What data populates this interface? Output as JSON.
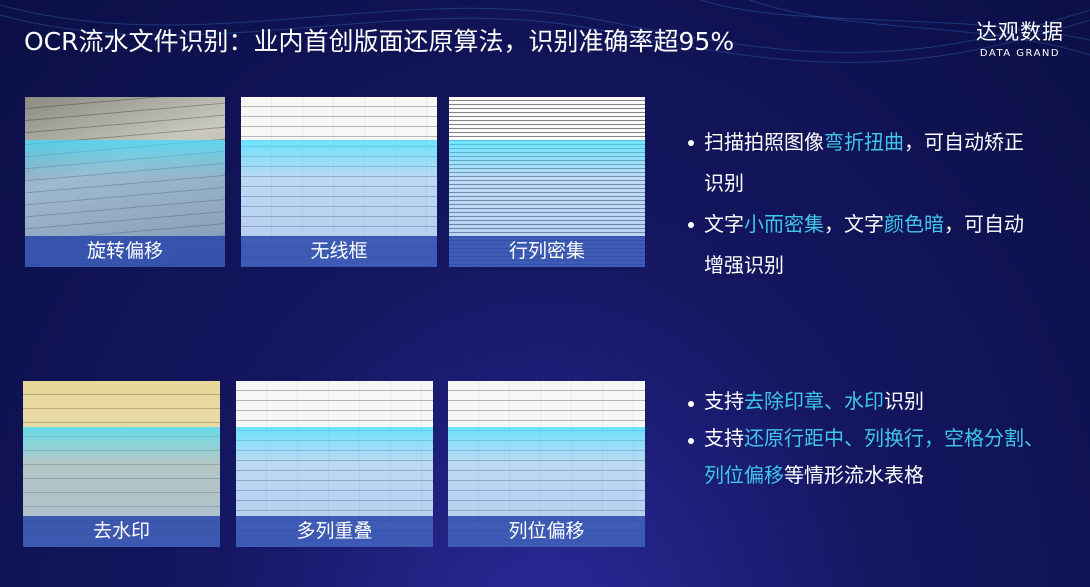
{
  "title": "OCR流水文件识别：业内首创版面还原算法，识别准确率超95%",
  "logo": {
    "cn": "达观数据",
    "en": "DATA GRAND"
  },
  "cards": [
    {
      "caption": "旋转偏移"
    },
    {
      "caption": "无线框"
    },
    {
      "caption": "行列密集"
    },
    {
      "caption": "去水印"
    },
    {
      "caption": "多列重叠"
    },
    {
      "caption": "列位偏移"
    }
  ],
  "bullets_top": [
    {
      "parts": [
        "扫描拍照图像",
        "弯折扭曲",
        "，可自动矫正识别"
      ]
    },
    {
      "parts": [
        "文字",
        "小而密集",
        "，文字",
        "颜色暗",
        "，可自动增强识别"
      ]
    }
  ],
  "bullets_bottom": [
    {
      "parts": [
        "支持",
        "去除印章、水印",
        "识别"
      ]
    },
    {
      "parts": [
        "支持",
        "还原行距中、列换行，空格分割、列位偏移",
        "等情形流水表格"
      ]
    }
  ],
  "colors": {
    "highlight": "#3fc6e8",
    "background": "#0b0f45"
  }
}
